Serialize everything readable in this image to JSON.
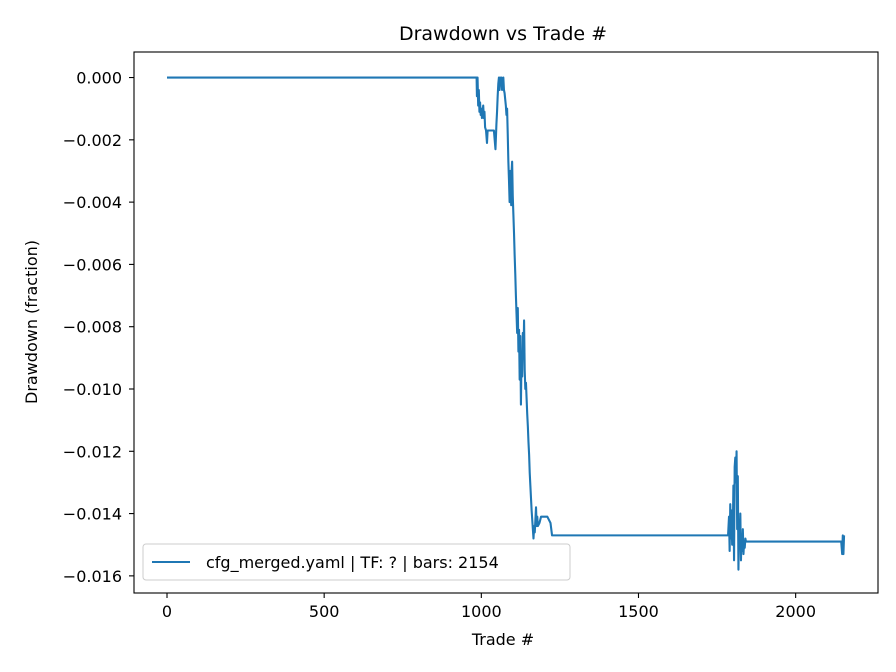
{
  "chart_data": {
    "type": "line",
    "title": "Drawdown vs Trade #",
    "xlabel": "Trade #",
    "ylabel": "Drawdown (fraction)",
    "xlim": [
      -105,
      2262
    ],
    "ylim": [
      -0.01655,
      0.00082
    ],
    "xticks": [
      0,
      500,
      1000,
      1500,
      2000
    ],
    "xtick_labels": [
      "0",
      "500",
      "1000",
      "1500",
      "2000"
    ],
    "yticks": [
      0.0,
      -0.002,
      -0.004,
      -0.006,
      -0.008,
      -0.01,
      -0.012,
      -0.014,
      -0.016
    ],
    "ytick_labels": [
      "0.000",
      "−0.002",
      "−0.004",
      "−0.006",
      "−0.008",
      "−0.010",
      "−0.012",
      "−0.014",
      "−0.016"
    ],
    "grid": false,
    "legend_position": "lower-left",
    "series": [
      {
        "name": "cfg_merged.yaml | TF: ? | bars: 2154",
        "color": "#1f77b4",
        "x": [
          0,
          985,
          986,
          988,
          990,
          992,
          994,
          996,
          998,
          1000,
          1002,
          1004,
          1006,
          1008,
          1010,
          1012,
          1015,
          1018,
          1020,
          1030,
          1040,
          1045,
          1048,
          1050,
          1052,
          1054,
          1056,
          1058,
          1060,
          1062,
          1064,
          1066,
          1068,
          1070,
          1072,
          1074,
          1076,
          1078,
          1080,
          1082,
          1084,
          1086,
          1088,
          1090,
          1092,
          1094,
          1095,
          1096,
          1098,
          1100,
          1102,
          1104,
          1106,
          1108,
          1110,
          1112,
          1114,
          1116,
          1118,
          1120,
          1122,
          1124,
          1126,
          1128,
          1130,
          1132,
          1134,
          1136,
          1138,
          1140,
          1142,
          1144,
          1146,
          1148,
          1150,
          1152,
          1154,
          1156,
          1158,
          1160,
          1162,
          1164,
          1166,
          1168,
          1170,
          1172,
          1174,
          1176,
          1178,
          1180,
          1185,
          1190,
          1200,
          1210,
          1220,
          1225,
          1300,
          1400,
          1500,
          1600,
          1700,
          1780,
          1785,
          1788,
          1790,
          1792,
          1794,
          1796,
          1798,
          1800,
          1802,
          1804,
          1806,
          1808,
          1810,
          1812,
          1814,
          1816,
          1818,
          1820,
          1822,
          1824,
          1826,
          1828,
          1830,
          1832,
          1834,
          1836,
          1838,
          1840,
          1842,
          1844,
          1846,
          1848,
          1850,
          1900,
          1950,
          2000,
          2050,
          2100,
          2145,
          2148,
          2150,
          2152,
          2154
        ],
        "values": [
          0.0,
          0.0,
          -0.0006,
          0.0,
          -0.0009,
          -0.0004,
          -0.0011,
          -0.0008,
          -0.0012,
          -0.001,
          -0.0013,
          -0.0011,
          -0.0009,
          -0.0013,
          -0.0011,
          -0.0016,
          -0.0017,
          -0.0021,
          -0.0017,
          -0.0017,
          -0.0017,
          -0.0023,
          -0.0015,
          -0.0011,
          -0.0006,
          -0.0002,
          0.0,
          -0.0004,
          0.0,
          -0.0002,
          0.0,
          -0.0004,
          -0.0002,
          0.0,
          -0.0004,
          -0.0005,
          -0.0007,
          -0.0009,
          -0.0012,
          -0.001,
          -0.0018,
          -0.0027,
          -0.0033,
          -0.004,
          -0.003,
          -0.0037,
          -0.0041,
          -0.0031,
          -0.0027,
          -0.0038,
          -0.0044,
          -0.005,
          -0.0057,
          -0.0063,
          -0.007,
          -0.0076,
          -0.0082,
          -0.0074,
          -0.0088,
          -0.0081,
          -0.0097,
          -0.0083,
          -0.0105,
          -0.0088,
          -0.0096,
          -0.0082,
          -0.009,
          -0.0078,
          -0.0094,
          -0.01,
          -0.0098,
          -0.0103,
          -0.0108,
          -0.0112,
          -0.0117,
          -0.0121,
          -0.0127,
          -0.0131,
          -0.0135,
          -0.0139,
          -0.0142,
          -0.0145,
          -0.0148,
          -0.0144,
          -0.0146,
          -0.0142,
          -0.0138,
          -0.0144,
          -0.0141,
          -0.0144,
          -0.0143,
          -0.0141,
          -0.0141,
          -0.0141,
          -0.0143,
          -0.0147,
          -0.0147,
          -0.0147,
          -0.0147,
          -0.0147,
          -0.0147,
          -0.0147,
          -0.0147,
          -0.0141,
          -0.0152,
          -0.0137,
          -0.0148,
          -0.0139,
          -0.015,
          -0.0146,
          -0.0131,
          -0.0155,
          -0.0125,
          -0.0122,
          -0.013,
          -0.012,
          -0.0145,
          -0.0128,
          -0.0158,
          -0.0142,
          -0.015,
          -0.014,
          -0.0155,
          -0.0147,
          -0.0152,
          -0.0145,
          -0.0153,
          -0.0149,
          -0.0151,
          -0.0148,
          -0.0149,
          -0.0149,
          -0.0149,
          -0.0149,
          -0.0149,
          -0.0149,
          -0.0149,
          -0.0149,
          -0.0149,
          -0.0149,
          -0.0149,
          -0.0153,
          -0.0147,
          -0.0153,
          -0.0147
        ]
      }
    ]
  }
}
